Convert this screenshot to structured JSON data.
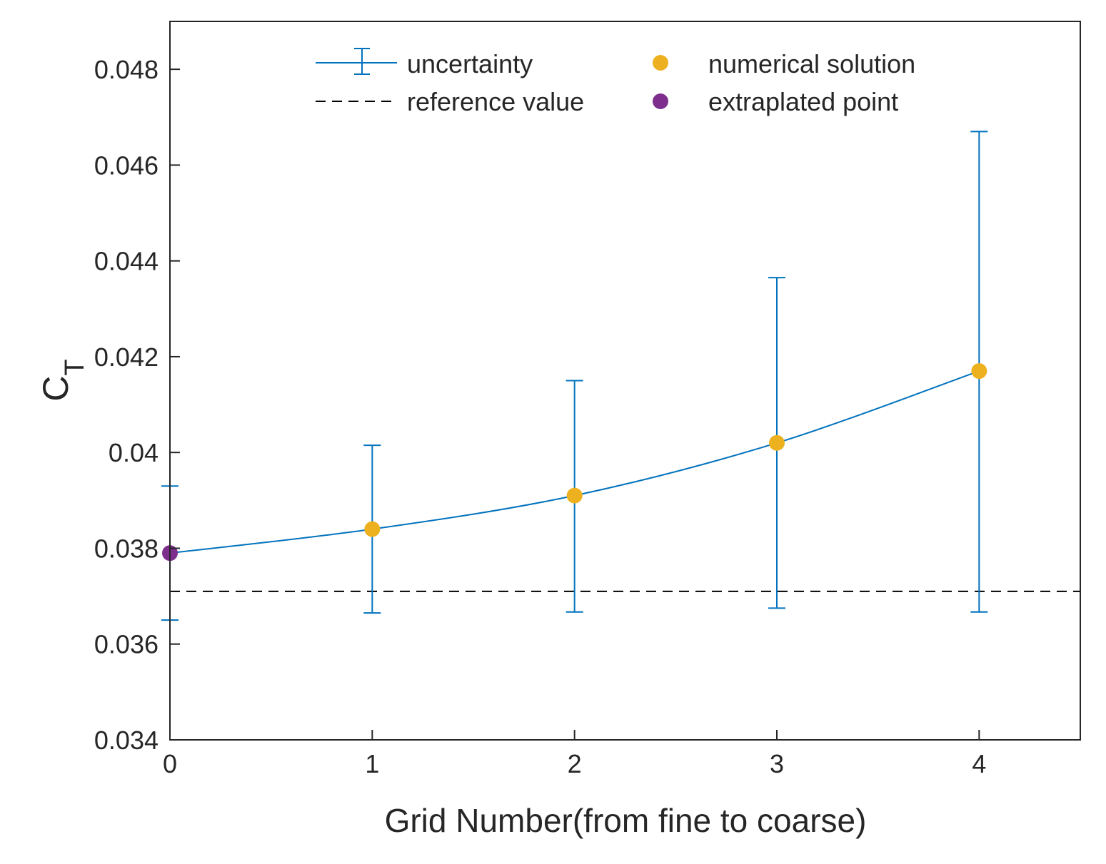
{
  "chart_data": {
    "type": "line",
    "title": "",
    "xlabel": "Grid Number(from fine to coarse)",
    "ylabel_main": "C",
    "ylabel_sub": "T",
    "xlim": [
      0,
      4.5
    ],
    "ylim": [
      0.034,
      0.049
    ],
    "xticks": [
      0,
      1,
      2,
      3,
      4
    ],
    "xtick_labels": [
      "0",
      "1",
      "2",
      "3",
      "4"
    ],
    "yticks": [
      0.034,
      0.036,
      0.038,
      0.04,
      0.042,
      0.044,
      0.046,
      0.048
    ],
    "ytick_labels": [
      "0.034",
      "0.036",
      "0.038",
      "0.04",
      "0.042",
      "0.044",
      "0.046",
      "0.048"
    ],
    "grid": false,
    "legend_position": "top",
    "reference_value": 0.0371,
    "series": [
      {
        "name": "uncertainty",
        "x": [
          0,
          1,
          2,
          3,
          4
        ],
        "y": [
          0.0379,
          0.0384,
          0.0391,
          0.0402,
          0.0417
        ],
        "lower": [
          0.0365,
          0.03665,
          0.03667,
          0.03675,
          0.03667
        ],
        "upper": [
          0.0393,
          0.04015,
          0.0415,
          0.04365,
          0.0467
        ],
        "color": "#0072BD"
      },
      {
        "name": "numerical solution",
        "x": [
          1,
          2,
          3,
          4
        ],
        "y": [
          0.0384,
          0.0391,
          0.0402,
          0.0417
        ],
        "color": "#EDB120"
      },
      {
        "name": "extraplated point",
        "x": [
          0
        ],
        "y": [
          0.0379
        ],
        "color": "#7E2F8E"
      }
    ],
    "legend": [
      {
        "label": "uncertainty",
        "kind": "errorbar",
        "color": "#0072BD"
      },
      {
        "label": "reference value",
        "kind": "dashed",
        "color": "#000000"
      },
      {
        "label": "numerical solution",
        "kind": "marker",
        "color": "#EDB120"
      },
      {
        "label": "extraplated point",
        "kind": "marker",
        "color": "#7E2F8E"
      }
    ]
  }
}
